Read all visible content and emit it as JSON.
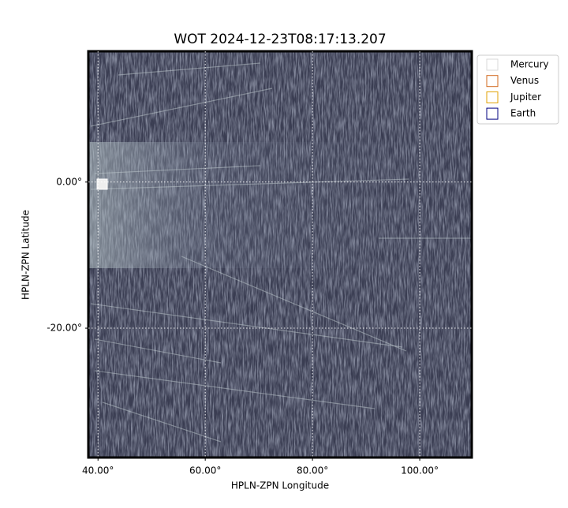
{
  "chart_data": {
    "type": "image",
    "title": "WOT 2024-12-23T08:17:13.207",
    "x_label": "HPLN-ZPN Longitude",
    "y_label": "HPLN-ZPN Latitude",
    "xlim": [
      38.2,
      109.7
    ],
    "ylim": [
      -37.7,
      17.9
    ],
    "xticks": [
      {
        "value": 40,
        "label": "40.00°"
      },
      {
        "value": 60,
        "label": "60.00°"
      },
      {
        "value": 80,
        "label": "80.00°"
      },
      {
        "value": 100,
        "label": "100.00°"
      }
    ],
    "yticks": [
      {
        "value": 0,
        "label": "0.00°"
      },
      {
        "value": -20,
        "label": "-20.00°"
      }
    ],
    "grid": true,
    "legend_position": "upper-right-outside",
    "series": [
      {
        "name": "Mercury",
        "color": "#d9d9d9"
      },
      {
        "name": "Venus",
        "color": "#d2691e"
      },
      {
        "name": "Jupiter",
        "color": "#e0a000"
      },
      {
        "name": "Earth",
        "color": "#000080"
      }
    ]
  }
}
